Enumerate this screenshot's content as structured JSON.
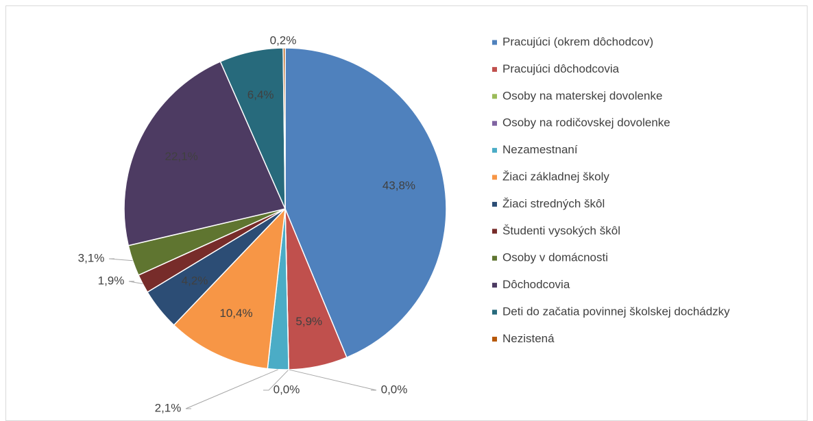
{
  "chart_data": {
    "type": "pie",
    "categories": [
      "Pracujúci (okrem dôchodcov)",
      "Pracujúci dôchodcovia",
      "Osoby na materskej dovolenke",
      "Osoby na rodičovskej dovolenke",
      "Nezamestnaní",
      "Žiaci základnej školy",
      "Žiaci stredných škôl",
      "Študenti vysokých škôl",
      "Osoby v domácnosti",
      "Dôchodcovia",
      "Deti do začatia povinnej školskej dochádzky",
      "Nezistená"
    ],
    "values": [
      43.8,
      5.9,
      0.0,
      0.0,
      2.1,
      10.4,
      4.2,
      1.9,
      3.1,
      22.1,
      6.4,
      0.2
    ],
    "value_labels": [
      "43,8%",
      "5,9%",
      "0,0%",
      "0,0%",
      "2,1%",
      "10,4%",
      "4,2%",
      "1,9%",
      "3,1%",
      "22,1%",
      "6,4%",
      "0,2%"
    ],
    "colors": [
      "#4f81bd",
      "#c0504d",
      "#9bbb59",
      "#8064a2",
      "#4bacc6",
      "#f79646",
      "#2c4d75",
      "#772c2a",
      "#5f7530",
      "#4d3b62",
      "#276a7c",
      "#b65708"
    ],
    "legend": "right"
  }
}
